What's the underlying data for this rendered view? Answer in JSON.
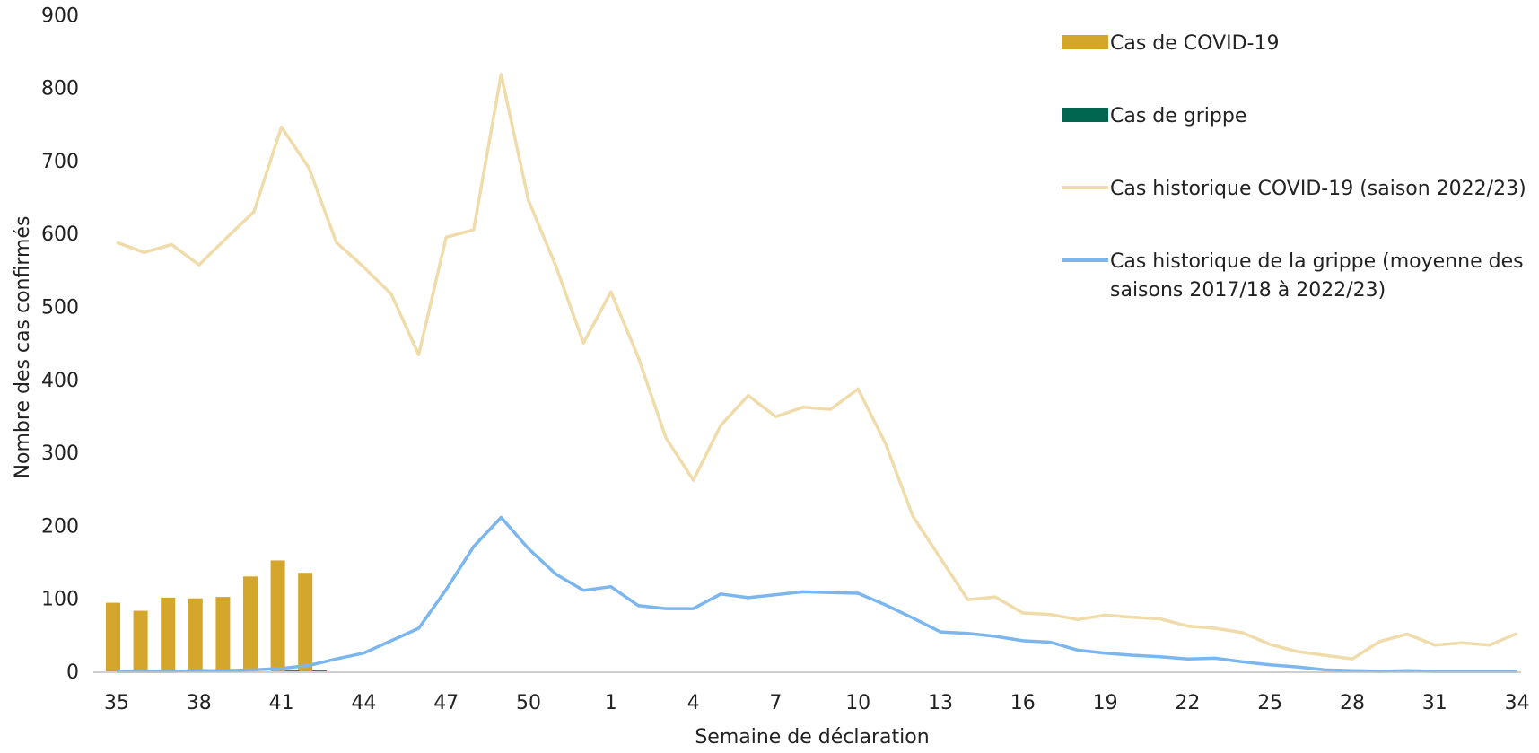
{
  "chart_data": {
    "type": "bar",
    "title": "",
    "xlabel": "Semaine de déclaration",
    "ylabel": "Nombre des cas confirmés",
    "ylim": [
      0,
      900
    ],
    "y_ticks": [
      0,
      100,
      200,
      300,
      400,
      500,
      600,
      700,
      800,
      900
    ],
    "grid": false,
    "legend_position": "top-right",
    "weeks": [
      35,
      36,
      37,
      38,
      39,
      40,
      41,
      42,
      43,
      44,
      45,
      46,
      47,
      48,
      49,
      50,
      51,
      52,
      1,
      2,
      3,
      4,
      5,
      6,
      7,
      8,
      9,
      10,
      11,
      12,
      13,
      14,
      15,
      16,
      17,
      18,
      19,
      20,
      21,
      22,
      23,
      24,
      25,
      26,
      27,
      28,
      29,
      30,
      31,
      32,
      33,
      34
    ],
    "x_tick_labels": [
      "35",
      "38",
      "41",
      "44",
      "47",
      "50",
      "1",
      "4",
      "7",
      "10",
      "13",
      "16",
      "19",
      "22",
      "25",
      "28",
      "31",
      "34"
    ],
    "series": [
      {
        "name": "Cas de COVID-19",
        "kind": "bar",
        "color": "#D4A72C",
        "values": [
          94,
          83,
          101,
          100,
          102,
          130,
          152,
          135
        ]
      },
      {
        "name": "Cas de grippe",
        "kind": "bar",
        "color": "#00664F",
        "values": [
          0,
          0,
          0,
          0,
          0,
          0,
          1,
          1
        ]
      },
      {
        "name": "Cas historique COVID-19 (saison 2022/23)",
        "kind": "line",
        "color": "#F0DCAA",
        "values": [
          588,
          574,
          585,
          557,
          594,
          630,
          746,
          690,
          588,
          554,
          517,
          434,
          595,
          605,
          818,
          645,
          555,
          450,
          520,
          430,
          320,
          262,
          337,
          378,
          349,
          362,
          359,
          387,
          312,
          212,
          155,
          98,
          102,
          80,
          78,
          71,
          77,
          74,
          72,
          62,
          59,
          53,
          37,
          27,
          22,
          17,
          41,
          51,
          36,
          39,
          36,
          52
        ]
      },
      {
        "name": "Cas historique de la grippe (moyenne des saisons 2017/18 à 2022/23)",
        "legend_lines": [
          "Cas historique de la grippe (moyenne des",
          "saisons 2017/18 à 2022/23)"
        ],
        "kind": "line",
        "color": "#7BB6EE",
        "values": [
          0,
          0,
          0,
          1,
          1,
          2,
          4,
          8,
          17,
          25,
          42,
          59,
          112,
          171,
          211,
          168,
          133,
          111,
          116,
          90,
          86,
          86,
          106,
          101,
          105,
          109,
          108,
          107,
          91,
          73,
          54,
          52,
          48,
          42,
          40,
          29,
          25,
          22,
          20,
          17,
          18,
          13,
          9,
          6,
          2,
          1,
          0,
          1,
          0,
          0,
          0,
          0
        ]
      }
    ]
  }
}
